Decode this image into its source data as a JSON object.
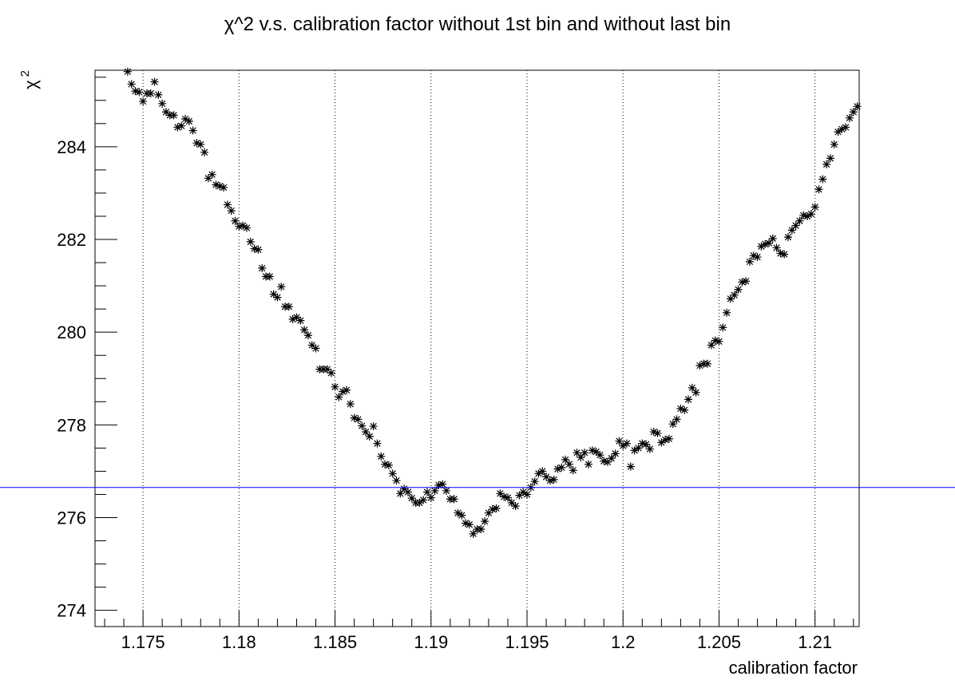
{
  "chart_data": {
    "type": "scatter",
    "title": "χ^2 v.s. calibration factor without 1st bin and without last bin",
    "xlabel": "calibration factor",
    "ylabel": "χ",
    "ylabel_superscript": "2",
    "xlim": [
      1.1725,
      1.2123
    ],
    "ylim": [
      273.65,
      285.65
    ],
    "x_ticks": [
      {
        "value": 1.175,
        "label": "1.175"
      },
      {
        "value": 1.18,
        "label": "1.18"
      },
      {
        "value": 1.185,
        "label": "1.185"
      },
      {
        "value": 1.19,
        "label": "1.19"
      },
      {
        "value": 1.195,
        "label": "1.195"
      },
      {
        "value": 1.2,
        "label": "1.2"
      },
      {
        "value": 1.205,
        "label": "1.205"
      },
      {
        "value": 1.21,
        "label": "1.21"
      }
    ],
    "y_ticks": [
      {
        "value": 274,
        "label": "274"
      },
      {
        "value": 276,
        "label": "276"
      },
      {
        "value": 278,
        "label": "278"
      },
      {
        "value": 280,
        "label": "280"
      },
      {
        "value": 282,
        "label": "282"
      },
      {
        "value": 284,
        "label": "284"
      }
    ],
    "x_minor_step": 0.001,
    "y_minor_step": 0.5,
    "grid": {
      "x": true,
      "y": false,
      "style": "dotted"
    },
    "reference_line": {
      "y": 276.65,
      "color": "#0000ff"
    },
    "marker": "asterisk",
    "marker_color": "#000000",
    "series": [
      {
        "x": [
          1.1742,
          1.1744,
          1.1746,
          1.1748,
          1.175,
          1.1752,
          1.1754,
          1.1756,
          1.1758,
          1.176,
          1.1762,
          1.1764,
          1.1766,
          1.1768,
          1.177,
          1.1772,
          1.1774,
          1.1776,
          1.1778,
          1.178,
          1.1782,
          1.1784,
          1.1786,
          1.1788,
          1.179,
          1.1792,
          1.1794,
          1.1796,
          1.1798,
          1.18,
          1.1802,
          1.1804,
          1.1806,
          1.1808,
          1.181,
          1.1812,
          1.1814,
          1.1816,
          1.1818,
          1.182,
          1.1822,
          1.1824,
          1.1826,
          1.1828,
          1.183,
          1.1832,
          1.1834,
          1.1836,
          1.1838,
          1.184,
          1.1842,
          1.1844,
          1.1846,
          1.1848,
          1.185,
          1.1852,
          1.1854,
          1.1856,
          1.1858,
          1.186,
          1.1862,
          1.1864,
          1.1866,
          1.1868,
          1.187,
          1.1872,
          1.1874,
          1.1876,
          1.1878,
          1.188,
          1.1882,
          1.1884,
          1.1886,
          1.1888,
          1.189,
          1.1892,
          1.1894,
          1.1896,
          1.1898,
          1.19,
          1.1902,
          1.1904,
          1.1906,
          1.1908,
          1.191,
          1.1912,
          1.1914,
          1.1916,
          1.1918,
          1.192,
          1.1922,
          1.1924,
          1.1926,
          1.1928,
          1.193,
          1.1932,
          1.1934,
          1.1936,
          1.1938,
          1.194,
          1.1942,
          1.1944,
          1.1946,
          1.1948,
          1.195,
          1.1952,
          1.1954,
          1.1956,
          1.1958,
          1.196,
          1.1962,
          1.1964,
          1.1966,
          1.1968,
          1.197,
          1.1972,
          1.1974,
          1.1976,
          1.1978,
          1.198,
          1.1982,
          1.1984,
          1.1986,
          1.1988,
          1.199,
          1.1992,
          1.1994,
          1.1996,
          1.1998,
          1.2,
          1.2002,
          1.2004,
          1.2006,
          1.2008,
          1.201,
          1.2012,
          1.2014,
          1.2016,
          1.2018,
          1.202,
          1.2022,
          1.2024,
          1.2026,
          1.2028,
          1.203,
          1.2032,
          1.2034,
          1.2036,
          1.2038,
          1.204,
          1.2042,
          1.2044,
          1.2046,
          1.2048,
          1.205,
          1.2052,
          1.2054,
          1.2056,
          1.2058,
          1.206,
          1.2062,
          1.2064,
          1.2066,
          1.2068,
          1.207,
          1.2072,
          1.2074,
          1.2076,
          1.2078,
          1.208,
          1.2082,
          1.2084,
          1.2086,
          1.2088,
          1.209,
          1.2092,
          1.2094,
          1.2096,
          1.2098,
          1.21,
          1.2102,
          1.2104,
          1.2106,
          1.2108,
          1.211,
          1.2112,
          1.2114,
          1.2116,
          1.2118,
          1.212,
          1.2122
        ],
        "y": [
          285.62,
          285.35,
          285.2,
          285.18,
          284.98,
          285.15,
          285.15,
          285.4,
          285.12,
          284.93,
          284.75,
          284.68,
          284.68,
          284.42,
          284.45,
          284.6,
          284.55,
          284.35,
          284.08,
          284.05,
          283.88,
          283.32,
          283.4,
          283.18,
          283.15,
          283.12,
          282.75,
          282.62,
          282.4,
          282.28,
          282.3,
          282.25,
          281.95,
          281.8,
          281.78,
          281.38,
          281.2,
          281.2,
          280.82,
          280.75,
          280.98,
          280.55,
          280.55,
          280.28,
          280.32,
          280.25,
          280.05,
          279.93,
          279.72,
          279.65,
          279.2,
          279.2,
          279.2,
          279.12,
          278.82,
          278.6,
          278.72,
          278.75,
          278.45,
          278.15,
          278.12,
          277.98,
          277.85,
          277.75,
          277.97,
          277.6,
          277.32,
          277.15,
          277.13,
          276.95,
          276.8,
          276.52,
          276.62,
          276.55,
          276.42,
          276.32,
          276.32,
          276.38,
          276.55,
          276.43,
          276.58,
          276.7,
          276.72,
          276.58,
          276.4,
          276.4,
          276.1,
          276.05,
          275.88,
          275.85,
          275.65,
          275.75,
          275.75,
          275.92,
          276.1,
          276.18,
          276.2,
          276.52,
          276.45,
          276.43,
          276.32,
          276.25,
          276.48,
          276.55,
          276.5,
          276.65,
          276.78,
          276.95,
          277.0,
          276.88,
          276.8,
          276.82,
          277.05,
          277.08,
          277.25,
          277.15,
          277.02,
          277.4,
          277.3,
          277.4,
          277.15,
          277.45,
          277.42,
          277.35,
          277.22,
          277.2,
          277.28,
          277.38,
          277.65,
          277.55,
          277.6,
          277.1,
          277.45,
          277.5,
          277.6,
          277.58,
          277.48,
          277.85,
          277.82,
          277.62,
          277.68,
          277.7,
          278.02,
          278.12,
          278.35,
          278.32,
          278.55,
          278.8,
          278.7,
          279.28,
          279.32,
          279.32,
          279.72,
          279.82,
          279.8,
          280.1,
          280.42,
          280.72,
          280.8,
          280.92,
          281.08,
          281.1,
          281.52,
          281.65,
          281.62,
          281.85,
          281.9,
          281.92,
          282.02,
          281.82,
          281.7,
          281.68,
          282.05,
          282.2,
          282.3,
          282.4,
          282.52,
          282.5,
          282.55,
          282.7,
          283.08,
          283.3,
          283.62,
          283.75,
          284.05,
          284.32,
          284.38,
          284.42,
          284.62,
          284.75,
          284.87
        ]
      }
    ]
  }
}
